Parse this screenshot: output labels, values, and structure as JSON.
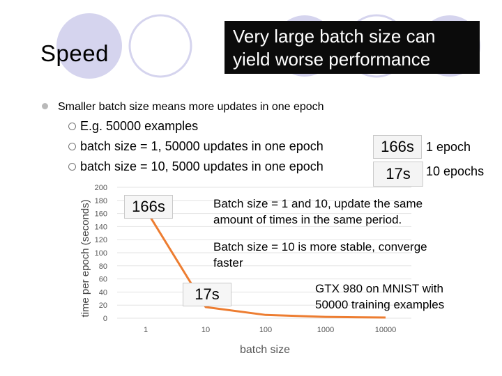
{
  "slide": {
    "title": "Speed",
    "callout_line1": "Very large batch size can",
    "callout_line2": "yield worse performance",
    "bullet": "Smaller batch size means more updates in one epoch",
    "sub_bullets": [
      "E.g. 50000 examples",
      "batch size = 1, 50000 updates in one epoch",
      "batch size = 10, 5000 updates in one epoch"
    ],
    "time_boxes": [
      {
        "value": "166s",
        "label": "1 epoch"
      },
      {
        "value": "17s",
        "label": "10 epochs"
      }
    ],
    "chart_callout_high": "166s",
    "chart_callout_low": "17s",
    "note1_line1": "Batch size = 1 and 10, update the same",
    "note1_line2": "amount of times in the same period.",
    "note2_line1": "Batch size = 10 is more stable, converge",
    "note2_line2": "faster",
    "note3_line1": "GTX 980 on MNIST with",
    "note3_line2": "50000 training examples"
  },
  "colors": {
    "accent_circle": "#d5d4ee",
    "line": "#ed7d31",
    "callout_bg": "#0b0b0b"
  },
  "chart_data": {
    "type": "line",
    "categories": [
      "1",
      "10",
      "100",
      "1000",
      "10000"
    ],
    "series": [
      {
        "values": [
          166,
          17,
          5,
          2,
          1
        ]
      }
    ],
    "xlabel": "batch size",
    "ylabel": "time per epoch (seconds)",
    "ylim": [
      0,
      200
    ],
    "yticks": [
      0,
      20,
      40,
      60,
      80,
      100,
      120,
      140,
      160,
      180,
      200
    ],
    "grid": true,
    "legend": "none"
  }
}
